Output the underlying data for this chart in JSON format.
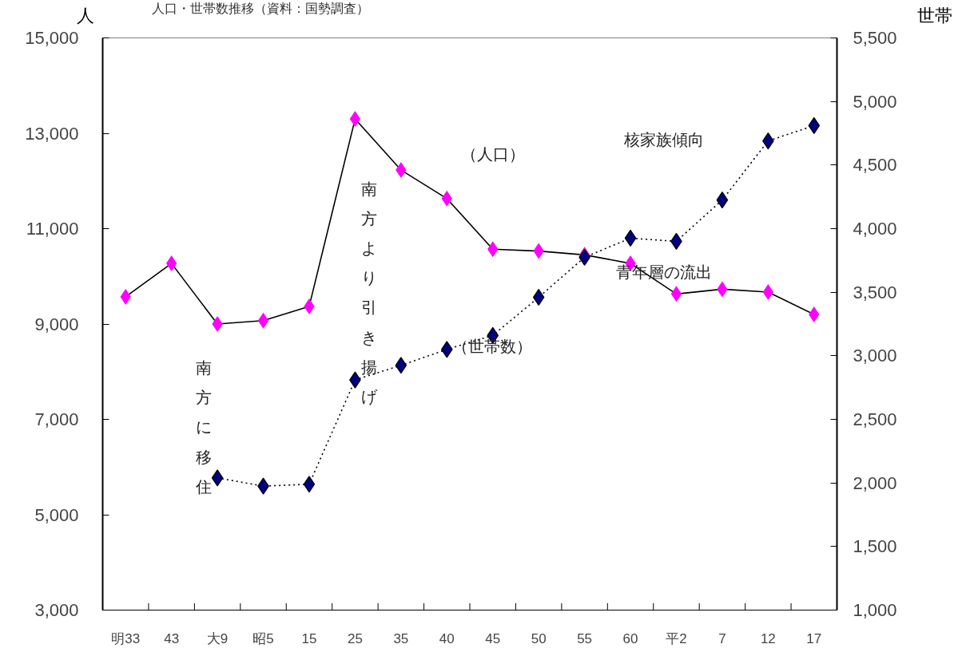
{
  "chart_data": {
    "type": "line",
    "title": "人口・世帯数推移（資料：国勢調査）",
    "ylabel": "人",
    "y2label": "世帯",
    "categories": [
      "明33",
      "43",
      "大9",
      "昭5",
      "15",
      "25",
      "35",
      "40",
      "45",
      "50",
      "55",
      "60",
      "平2",
      "7",
      "12",
      "17"
    ],
    "series": [
      {
        "color": "#ff00ff",
        "line_style": "solid",
        "values": [
          9570,
          10270,
          9000,
          9070,
          9370,
          13300,
          12230,
          11630,
          10570,
          10530,
          10450,
          10270,
          9630,
          9730,
          9670,
          9200
        ]
      },
      {
        "color": "#000080",
        "line_style": "dotted",
        "axis": "y2",
        "values": [
          null,
          null,
          2040,
          1975,
          1990,
          2810,
          2925,
          3050,
          3160,
          3460,
          3775,
          3925,
          3900,
          4225,
          4690,
          4810
        ]
      }
    ],
    "ylim": [
      3000,
      15000
    ],
    "yticks": [
      {
        "value": 3000,
        "label": "3,000"
      },
      {
        "value": 5000,
        "label": "5,000"
      },
      {
        "value": 7000,
        "label": "7,000"
      },
      {
        "value": 9000,
        "label": "9,000"
      },
      {
        "value": 11000,
        "label": "11,000"
      },
      {
        "value": 13000,
        "label": "13,000"
      },
      {
        "value": 15000,
        "label": "15,000"
      }
    ],
    "y2lim": [
      1000,
      5500
    ],
    "y2ticks": [
      {
        "value": 1000,
        "label": "1,000"
      },
      {
        "value": 1500,
        "label": "1,500"
      },
      {
        "value": 2000,
        "label": "2,000"
      },
      {
        "value": 2500,
        "label": "2,500"
      },
      {
        "value": 3000,
        "label": "3,000"
      },
      {
        "value": 3500,
        "label": "3,500"
      },
      {
        "value": 4000,
        "label": "4,000"
      },
      {
        "value": 4500,
        "label": "4,500"
      },
      {
        "value": 5000,
        "label": "5,000"
      },
      {
        "value": 5500,
        "label": "5,500"
      }
    ],
    "marker": "diamond",
    "grid": false,
    "annotations": [
      "（人口）",
      "（世帯数）",
      "核家族傾向",
      "青年層の流出",
      "南方より引き揚げ",
      "南方に移住"
    ]
  }
}
